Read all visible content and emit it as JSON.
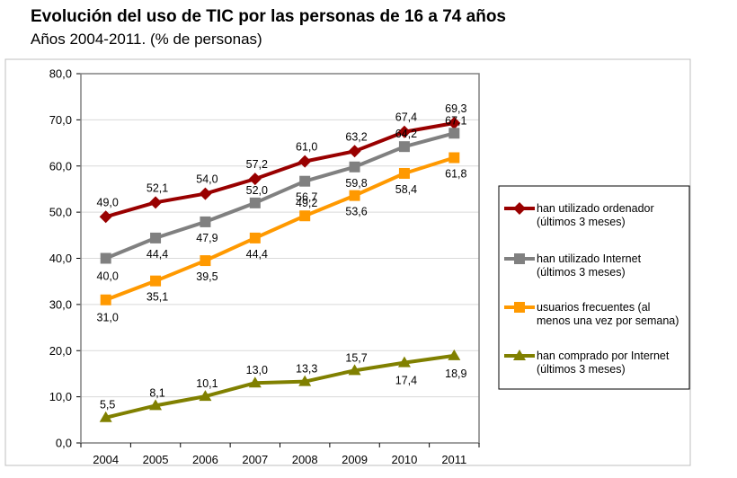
{
  "title": "Evolución del uso de TIC por las personas de 16 a 74 años",
  "subtitle": "Años 2004-2011. (% de personas)",
  "chart_data": {
    "type": "line",
    "x": [
      "2004",
      "2005",
      "2006",
      "2007",
      "2008",
      "2009",
      "2010",
      "2011"
    ],
    "ylim": [
      0,
      80
    ],
    "yticks": [
      "0,0",
      "10,0",
      "20,0",
      "30,0",
      "40,0",
      "50,0",
      "60,0",
      "70,0",
      "80,0"
    ],
    "grid": true,
    "legend_position": "right",
    "series": [
      {
        "name_lines": [
          "han utilizado ordenador",
          "(últimos 3 meses)"
        ],
        "color": "#990000",
        "marker": "diamond",
        "values": [
          49.0,
          52.1,
          54.0,
          57.2,
          61.0,
          63.2,
          67.4,
          69.3
        ],
        "labels": [
          "49,0",
          "52,1",
          "54,0",
          "57,2",
          "61,0",
          "63,2",
          "67,4",
          "69,3"
        ]
      },
      {
        "name_lines": [
          "han utilizado Internet",
          "(últimos 3 meses)"
        ],
        "color": "#808080",
        "marker": "square",
        "values": [
          40.0,
          44.4,
          47.9,
          52.0,
          56.7,
          59.8,
          64.2,
          67.1
        ],
        "labels": [
          "40,0",
          "44,4",
          "47,9",
          "52,0",
          "56,7",
          "59,8",
          "64,2",
          "67,1"
        ]
      },
      {
        "name_lines": [
          "usuarios frecuentes (al",
          "menos una vez por semana)"
        ],
        "color": "#ff9900",
        "marker": "square",
        "values": [
          31.0,
          35.1,
          39.5,
          44.4,
          49.2,
          53.6,
          58.4,
          61.8
        ],
        "labels": [
          "31,0",
          "35,1",
          "39,5",
          "44,4",
          "49,2",
          "53,6",
          "58,4",
          "61,8"
        ]
      },
      {
        "name_lines": [
          "han comprado por Internet",
          "(últimos 3 meses)"
        ],
        "color": "#808000",
        "marker": "triangle",
        "values": [
          5.5,
          8.1,
          10.1,
          13.0,
          13.3,
          15.7,
          17.4,
          18.9
        ],
        "labels": [
          "5,5",
          "8,1",
          "10,1",
          "13,0",
          "13,3",
          "15,7",
          "17,4",
          "18,9"
        ]
      }
    ]
  }
}
